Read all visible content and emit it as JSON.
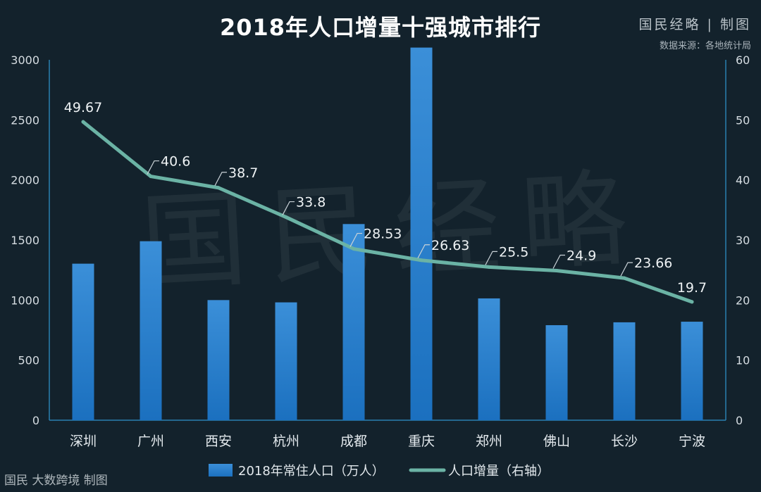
{
  "header": {
    "title": "2018年人口增量十强城市排行",
    "brand": "国民经略 | 制图",
    "source": "数据来源：各地统计局"
  },
  "watermark": "国民经略",
  "footer": {
    "text": "国民 大数跨境 制图"
  },
  "colors": {
    "background": "#13222c",
    "bar": "#2a84d2",
    "line": "#6bb3a5",
    "axis": "#2a7fb0"
  },
  "chart_data": {
    "type": "bar",
    "categories": [
      "深圳",
      "广州",
      "西安",
      "杭州",
      "成都",
      "重庆",
      "郑州",
      "佛山",
      "长沙",
      "宁波"
    ],
    "series": [
      {
        "name": "2018年常住人口（万人）",
        "type": "bar",
        "axis": "left",
        "values": [
          1303,
          1490,
          1000,
          981,
          1633,
          3102,
          1014,
          791,
          815,
          820
        ]
      },
      {
        "name": "人口增量（右轴）",
        "type": "line",
        "axis": "right",
        "values": [
          49.67,
          40.6,
          38.7,
          33.8,
          28.53,
          26.63,
          25.5,
          24.9,
          23.66,
          19.7
        ],
        "labels": [
          "49.67",
          "40.6",
          "38.7",
          "33.8",
          "28.53",
          "26.63",
          "25.5",
          "24.9",
          "23.66",
          "19.7"
        ]
      }
    ],
    "y_left": {
      "ylim": [
        0,
        3000
      ],
      "ticks": [
        "0",
        "500",
        "1000",
        "1500",
        "2000",
        "2500",
        "3000"
      ]
    },
    "y_right": {
      "ylim": [
        0,
        60
      ],
      "ticks": [
        "0",
        "10",
        "20",
        "30",
        "40",
        "50",
        "60"
      ]
    },
    "legend": {
      "placement": "bottom"
    }
  }
}
